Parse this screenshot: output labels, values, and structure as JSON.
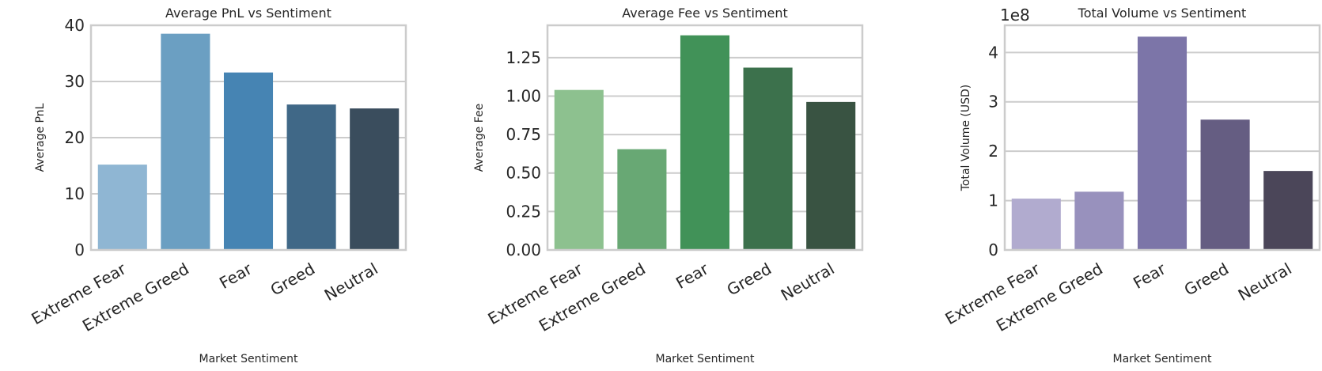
{
  "chart_data": [
    {
      "type": "bar",
      "title": "Average PnL vs Sentiment",
      "xlabel": "Market Sentiment",
      "ylabel": "Average PnL",
      "categories": [
        "Extreme Fear",
        "Extreme Greed",
        "Fear",
        "Greed",
        "Neutral"
      ],
      "values": [
        15.2,
        38.5,
        31.6,
        25.9,
        25.2
      ],
      "ylim": [
        0,
        40
      ],
      "yticks": [
        0,
        10,
        20,
        30,
        40
      ],
      "ytick_labels": [
        "0",
        "10",
        "20",
        "30",
        "40"
      ],
      "offset_text": "",
      "colors": [
        "#8fb6d3",
        "#6b9fc2",
        "#4684b3",
        "#406887",
        "#3a4d5d"
      ],
      "grid": true
    },
    {
      "type": "bar",
      "title": "Average Fee vs Sentiment",
      "xlabel": "Market Sentiment",
      "ylabel": "Average Fee",
      "categories": [
        "Extreme Fear",
        "Extreme Greed",
        "Fear",
        "Greed",
        "Neutral"
      ],
      "values": [
        1.04,
        0.655,
        1.395,
        1.185,
        0.962
      ],
      "ylim": [
        0,
        1.46
      ],
      "yticks": [
        0,
        0.25,
        0.5,
        0.75,
        1.0,
        1.25
      ],
      "ytick_labels": [
        "0.00",
        "0.25",
        "0.50",
        "0.75",
        "1.00",
        "1.25"
      ],
      "offset_text": "",
      "colors": [
        "#8dc18f",
        "#68a874",
        "#419258",
        "#3c714c",
        "#395342"
      ],
      "grid": true
    },
    {
      "type": "bar",
      "title": "Total Volume vs Sentiment",
      "xlabel": "Market Sentiment",
      "ylabel": "Total Volume (USD)",
      "categories": [
        "Extreme Fear",
        "Extreme Greed",
        "Fear",
        "Greed",
        "Neutral"
      ],
      "values": [
        104000000,
        118000000,
        432000000,
        264000000,
        160000000
      ],
      "ylim": [
        0,
        455000000
      ],
      "yticks": [
        0,
        100000000,
        200000000,
        300000000,
        400000000
      ],
      "ytick_labels": [
        "0",
        "1",
        "2",
        "3",
        "4"
      ],
      "offset_text": "1e8",
      "colors": [
        "#b1abcf",
        "#9891bd",
        "#7c75a8",
        "#655d82",
        "#4b4659"
      ],
      "grid": true
    }
  ]
}
